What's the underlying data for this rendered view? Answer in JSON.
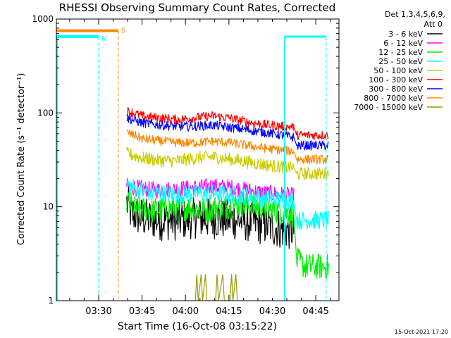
{
  "chart_data": {
    "type": "line",
    "title": "RHESSI Observing Summary Count Rates, Corrected",
    "xlabel": "Start Time (16-Oct-08 03:15:22)",
    "ylabel": "Corrected Count Rate (s⁻¹ detector⁻¹)",
    "y_scale": "log",
    "ylim": [
      1,
      1000
    ],
    "xlim_minutes_after_start": [
      0,
      97.6
    ],
    "x_tick_labels": [
      {
        "label": "03:30",
        "t": 14.6
      },
      {
        "label": "03:45",
        "t": 29.6
      },
      {
        "label": "04:00",
        "t": 44.6
      },
      {
        "label": "04:15",
        "t": 59.6
      },
      {
        "label": "04:30",
        "t": 74.6
      },
      {
        "label": "04:45",
        "t": 89.6
      }
    ],
    "y_tick_labels": [
      {
        "label": "1",
        "v": 1
      },
      {
        "label": "10",
        "v": 10
      },
      {
        "label": "100",
        "v": 100
      },
      {
        "label": "1000",
        "v": 1000
      }
    ],
    "legend_header": [
      "Det 1,3,4,5,6,9,",
      "Att 0"
    ],
    "legend_placement": "right",
    "series": [
      {
        "name": "3 - 6 keV",
        "color": "#000000",
        "points": [
          [
            24.3,
            11
          ],
          [
            26,
            8.5
          ],
          [
            30,
            7.6
          ],
          [
            36,
            7.2
          ],
          [
            42,
            7.2
          ],
          [
            48,
            7.6
          ],
          [
            54,
            7.5
          ],
          [
            60,
            7.4
          ],
          [
            66,
            7.0
          ],
          [
            72,
            6.4
          ],
          [
            78,
            5.8
          ],
          [
            82,
            5.6
          ]
        ]
      },
      {
        "name": "6 - 12 keV",
        "color": "#ff00ff",
        "points": [
          [
            24.3,
            16.5
          ],
          [
            30,
            15.5
          ],
          [
            36,
            15
          ],
          [
            42,
            15.5
          ],
          [
            48,
            16
          ],
          [
            54,
            16.5
          ],
          [
            60,
            16
          ],
          [
            66,
            15
          ],
          [
            72,
            14
          ],
          [
            78,
            13.5
          ],
          [
            82,
            13
          ]
        ]
      },
      {
        "name": "12 - 25 keV",
        "color": "#00ee00",
        "points": [
          [
            24.3,
            11.5
          ],
          [
            27,
            9.5
          ],
          [
            33,
            9.2
          ],
          [
            39,
            9.6
          ],
          [
            45,
            9.8
          ],
          [
            51,
            9.2
          ],
          [
            57,
            10
          ],
          [
            63,
            10.5
          ],
          [
            69,
            10
          ],
          [
            75,
            9.2
          ],
          [
            80,
            8.6
          ],
          [
            82,
            8.3
          ],
          [
            83,
            2.7
          ],
          [
            86,
            2.3
          ],
          [
            88,
            2.3
          ],
          [
            94,
            2.3
          ]
        ]
      },
      {
        "name": "25 - 50 keV",
        "color": "#00ffff",
        "points": [
          [
            24.3,
            17.5
          ],
          [
            30,
            14.5
          ],
          [
            36,
            14
          ],
          [
            42,
            13.5
          ],
          [
            48,
            14
          ],
          [
            54,
            14
          ],
          [
            60,
            13.5
          ],
          [
            66,
            13
          ],
          [
            72,
            12.5
          ],
          [
            78,
            11.8
          ],
          [
            82,
            11.5
          ],
          [
            83,
            7.2
          ],
          [
            94,
            7.2
          ]
        ]
      },
      {
        "name": "50 - 100 keV",
        "color": "#cccc00",
        "points": [
          [
            24.3,
            37
          ],
          [
            30,
            33
          ],
          [
            36,
            31
          ],
          [
            42,
            31
          ],
          [
            48,
            33
          ],
          [
            54,
            34
          ],
          [
            60,
            32
          ],
          [
            66,
            30
          ],
          [
            72,
            28
          ],
          [
            78,
            26.5
          ],
          [
            82,
            26
          ],
          [
            83,
            22.5
          ],
          [
            94,
            22.5
          ]
        ]
      },
      {
        "name": "100 - 300 keV",
        "color": "#ff0000",
        "points": [
          [
            24.3,
            105
          ],
          [
            30,
            92
          ],
          [
            36,
            88
          ],
          [
            42,
            85
          ],
          [
            48,
            89
          ],
          [
            54,
            93
          ],
          [
            60,
            88
          ],
          [
            66,
            80
          ],
          [
            72,
            75
          ],
          [
            78,
            72
          ],
          [
            82,
            71
          ],
          [
            83,
            58
          ],
          [
            94,
            58
          ]
        ]
      },
      {
        "name": "300 - 800 keV",
        "color": "#0000ff",
        "points": [
          [
            24.3,
            88
          ],
          [
            30,
            78
          ],
          [
            36,
            74
          ],
          [
            42,
            72
          ],
          [
            48,
            72
          ],
          [
            54,
            74
          ],
          [
            60,
            70
          ],
          [
            66,
            66
          ],
          [
            72,
            62
          ],
          [
            78,
            58
          ],
          [
            82,
            55
          ],
          [
            83,
            45
          ],
          [
            94,
            45
          ]
        ]
      },
      {
        "name": "800 - 7000 keV",
        "color": "#ff8800",
        "points": [
          [
            24.3,
            62
          ],
          [
            30,
            53
          ],
          [
            36,
            50
          ],
          [
            42,
            48
          ],
          [
            48,
            48
          ],
          [
            54,
            50
          ],
          [
            60,
            48
          ],
          [
            66,
            45
          ],
          [
            72,
            42
          ],
          [
            78,
            40
          ],
          [
            82,
            39
          ],
          [
            83,
            32
          ],
          [
            94,
            32
          ]
        ]
      },
      {
        "name": "7000 - 15000 keV",
        "color": "#999900",
        "points": [
          [
            48,
            1
          ],
          [
            48.5,
            1.9
          ],
          [
            49,
            1
          ],
          [
            50,
            1.9
          ],
          [
            50.5,
            1
          ],
          [
            51.5,
            1.9
          ],
          [
            52,
            1
          ],
          [
            55,
            1
          ],
          [
            55.5,
            1.9
          ],
          [
            56,
            1
          ],
          [
            57.5,
            1.9
          ],
          [
            58,
            1
          ],
          [
            60,
            1
          ],
          [
            60.5,
            1.9
          ],
          [
            61,
            1
          ],
          [
            62,
            1.9
          ],
          [
            62.5,
            1
          ]
        ]
      }
    ],
    "flags": [
      {
        "name": "S",
        "color": "#ff8800",
        "value": 750,
        "t_start": 0,
        "t_end": 21.4,
        "vline_t": 21.4
      },
      {
        "name": "N",
        "color": "#00ffff",
        "value": 650,
        "t_start": 0,
        "t_end": 14.6,
        "vline_t": 14.6
      }
    ],
    "cyan_right_block": {
      "t_start": 78.8,
      "t_end": 93.2,
      "value": 650
    },
    "timestamp": "15-Oct-2021 17:20"
  }
}
